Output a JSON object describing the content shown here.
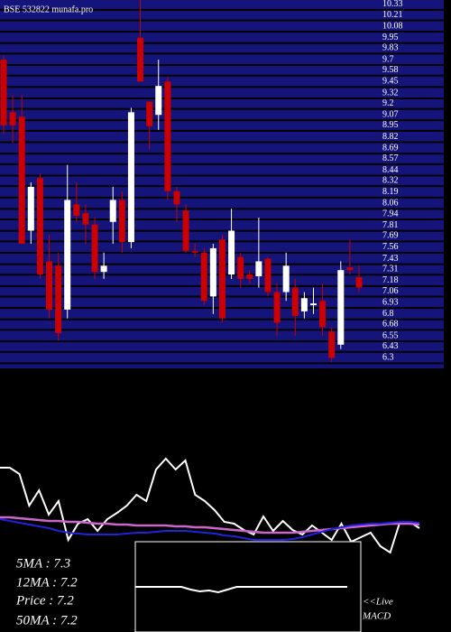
{
  "chart_data": [
    {
      "type": "candlestick",
      "title": "BSE 532822 munafa.pro",
      "open": [
        9.7,
        9.1,
        9.05,
        7.75,
        8.35,
        7.4,
        7.35,
        6.85,
        8.05,
        7.95,
        7.82,
        7.28,
        7.85,
        8.1,
        7.62,
        9.95,
        9.22,
        9.07,
        9.45,
        8.2,
        7.98,
        7.52,
        7.5,
        7.0,
        7.65,
        7.25,
        7.45,
        7.25,
        7.23,
        7.43,
        7.05,
        7.05,
        7.1,
        6.83,
        6.9,
        6.95,
        6.6,
        6.45,
        7.33,
        7.22
      ],
      "high": [
        9.75,
        9.3,
        9.3,
        8.3,
        8.4,
        7.7,
        7.5,
        8.5,
        8.3,
        8.05,
        7.9,
        7.5,
        8.25,
        8.2,
        9.15,
        10.4,
        9.22,
        9.7,
        9.5,
        8.25,
        8.05,
        7.6,
        7.55,
        7.6,
        7.7,
        8.0,
        7.5,
        7.3,
        7.9,
        7.45,
        7.15,
        7.5,
        7.2,
        7.05,
        7.1,
        7.15,
        6.65,
        7.4,
        7.65,
        7.35
      ],
      "low": [
        8.85,
        8.75,
        7.6,
        7.6,
        7.2,
        6.75,
        6.5,
        6.75,
        7.85,
        7.6,
        7.2,
        7.2,
        7.6,
        7.5,
        7.55,
        9.45,
        8.68,
        8.9,
        8.1,
        7.85,
        7.5,
        7.45,
        6.9,
        6.8,
        6.7,
        7.2,
        7.1,
        7.15,
        7.1,
        7.0,
        6.55,
        6.95,
        6.55,
        6.75,
        6.8,
        6.55,
        6.25,
        6.4,
        7.25,
        7.05
      ],
      "close": [
        8.95,
        8.95,
        7.6,
        8.25,
        7.25,
        6.85,
        6.58,
        8.1,
        7.92,
        7.82,
        7.28,
        7.35,
        8.1,
        7.62,
        9.1,
        9.45,
        8.94,
        9.4,
        8.2,
        8.05,
        7.52,
        7.5,
        6.95,
        7.55,
        6.75,
        7.75,
        7.2,
        7.2,
        7.4,
        7.05,
        6.7,
        7.35,
        6.78,
        6.98,
        6.92,
        6.65,
        6.3,
        7.3,
        7.3,
        7.1
      ],
      "up_color": "#ffffff",
      "down_color": "#cc0000",
      "ylim": [
        6.18,
        10.38
      ],
      "yticks": [
        10.33,
        10.21,
        10.08,
        9.95,
        9.83,
        9.7,
        9.58,
        9.45,
        9.32,
        9.2,
        9.07,
        8.95,
        8.82,
        8.69,
        8.57,
        8.44,
        8.32,
        8.19,
        8.06,
        7.94,
        7.81,
        7.69,
        7.56,
        7.43,
        7.31,
        7.18,
        7.06,
        6.93,
        6.8,
        6.68,
        6.55,
        6.43,
        6.3
      ],
      "grid": true,
      "grid_color": "#14147a"
    },
    {
      "type": "line",
      "legend": [
        "5MA : 7.3",
        "12MA : 7.2",
        "Price : 7.2",
        "50MA : 7.2"
      ],
      "series": [
        {
          "color": "#ffffff",
          "values": [
            51,
            51,
            47.5,
            30,
            38.5,
            25,
            32.5,
            11,
            20,
            22.5,
            16,
            22.5,
            26,
            30,
            36,
            32.5,
            50,
            56,
            50,
            55,
            36,
            32.5,
            27.5,
            21,
            20,
            16.5,
            14,
            24,
            16,
            21.5,
            16.5,
            14,
            19,
            15,
            11,
            20,
            10,
            12.5,
            15,
            7.5,
            4,
            21,
            21,
            17.5
          ]
        },
        {
          "color": "#cc66cc",
          "values": [
            23.5,
            23.5,
            23,
            22.5,
            22,
            21.5,
            21.5,
            21,
            21,
            20.5,
            20,
            20,
            19.5,
            19.5,
            19,
            19,
            19,
            19,
            18.5,
            18.5,
            18,
            18,
            17.5,
            17,
            16.5,
            16,
            15.5,
            15,
            15,
            15,
            15,
            15.5,
            16,
            16.5,
            17,
            17.5,
            18,
            18.5,
            19,
            19.5,
            20,
            20,
            20,
            19.5
          ]
        },
        {
          "color": "#2222dd",
          "values": [
            22.5,
            21.5,
            20.5,
            19.5,
            18.5,
            17.5,
            16,
            15,
            14.5,
            14,
            14,
            14,
            14,
            14.5,
            15,
            15,
            15.5,
            16,
            16,
            16,
            15.5,
            15,
            14.5,
            13.5,
            13,
            12,
            11,
            11,
            11,
            11,
            11.5,
            12.5,
            14,
            15.5,
            17,
            18,
            19,
            19.5,
            20,
            20,
            20.5,
            21,
            21,
            20.5
          ]
        }
      ],
      "ylim": [
        0,
        100
      ]
    },
    {
      "type": "line",
      "title": "MACD",
      "annotation": "<<Live",
      "series": [
        {
          "color": "#ffffff",
          "values": [
            0,
            0,
            0,
            0,
            0,
            0,
            -0.06,
            -0.1,
            -0.08,
            -0.12,
            -0.06,
            0,
            0,
            0,
            0,
            0,
            0,
            0,
            0,
            0,
            0,
            0,
            0,
            0
          ]
        }
      ],
      "ylim": [
        -1,
        1
      ]
    }
  ]
}
